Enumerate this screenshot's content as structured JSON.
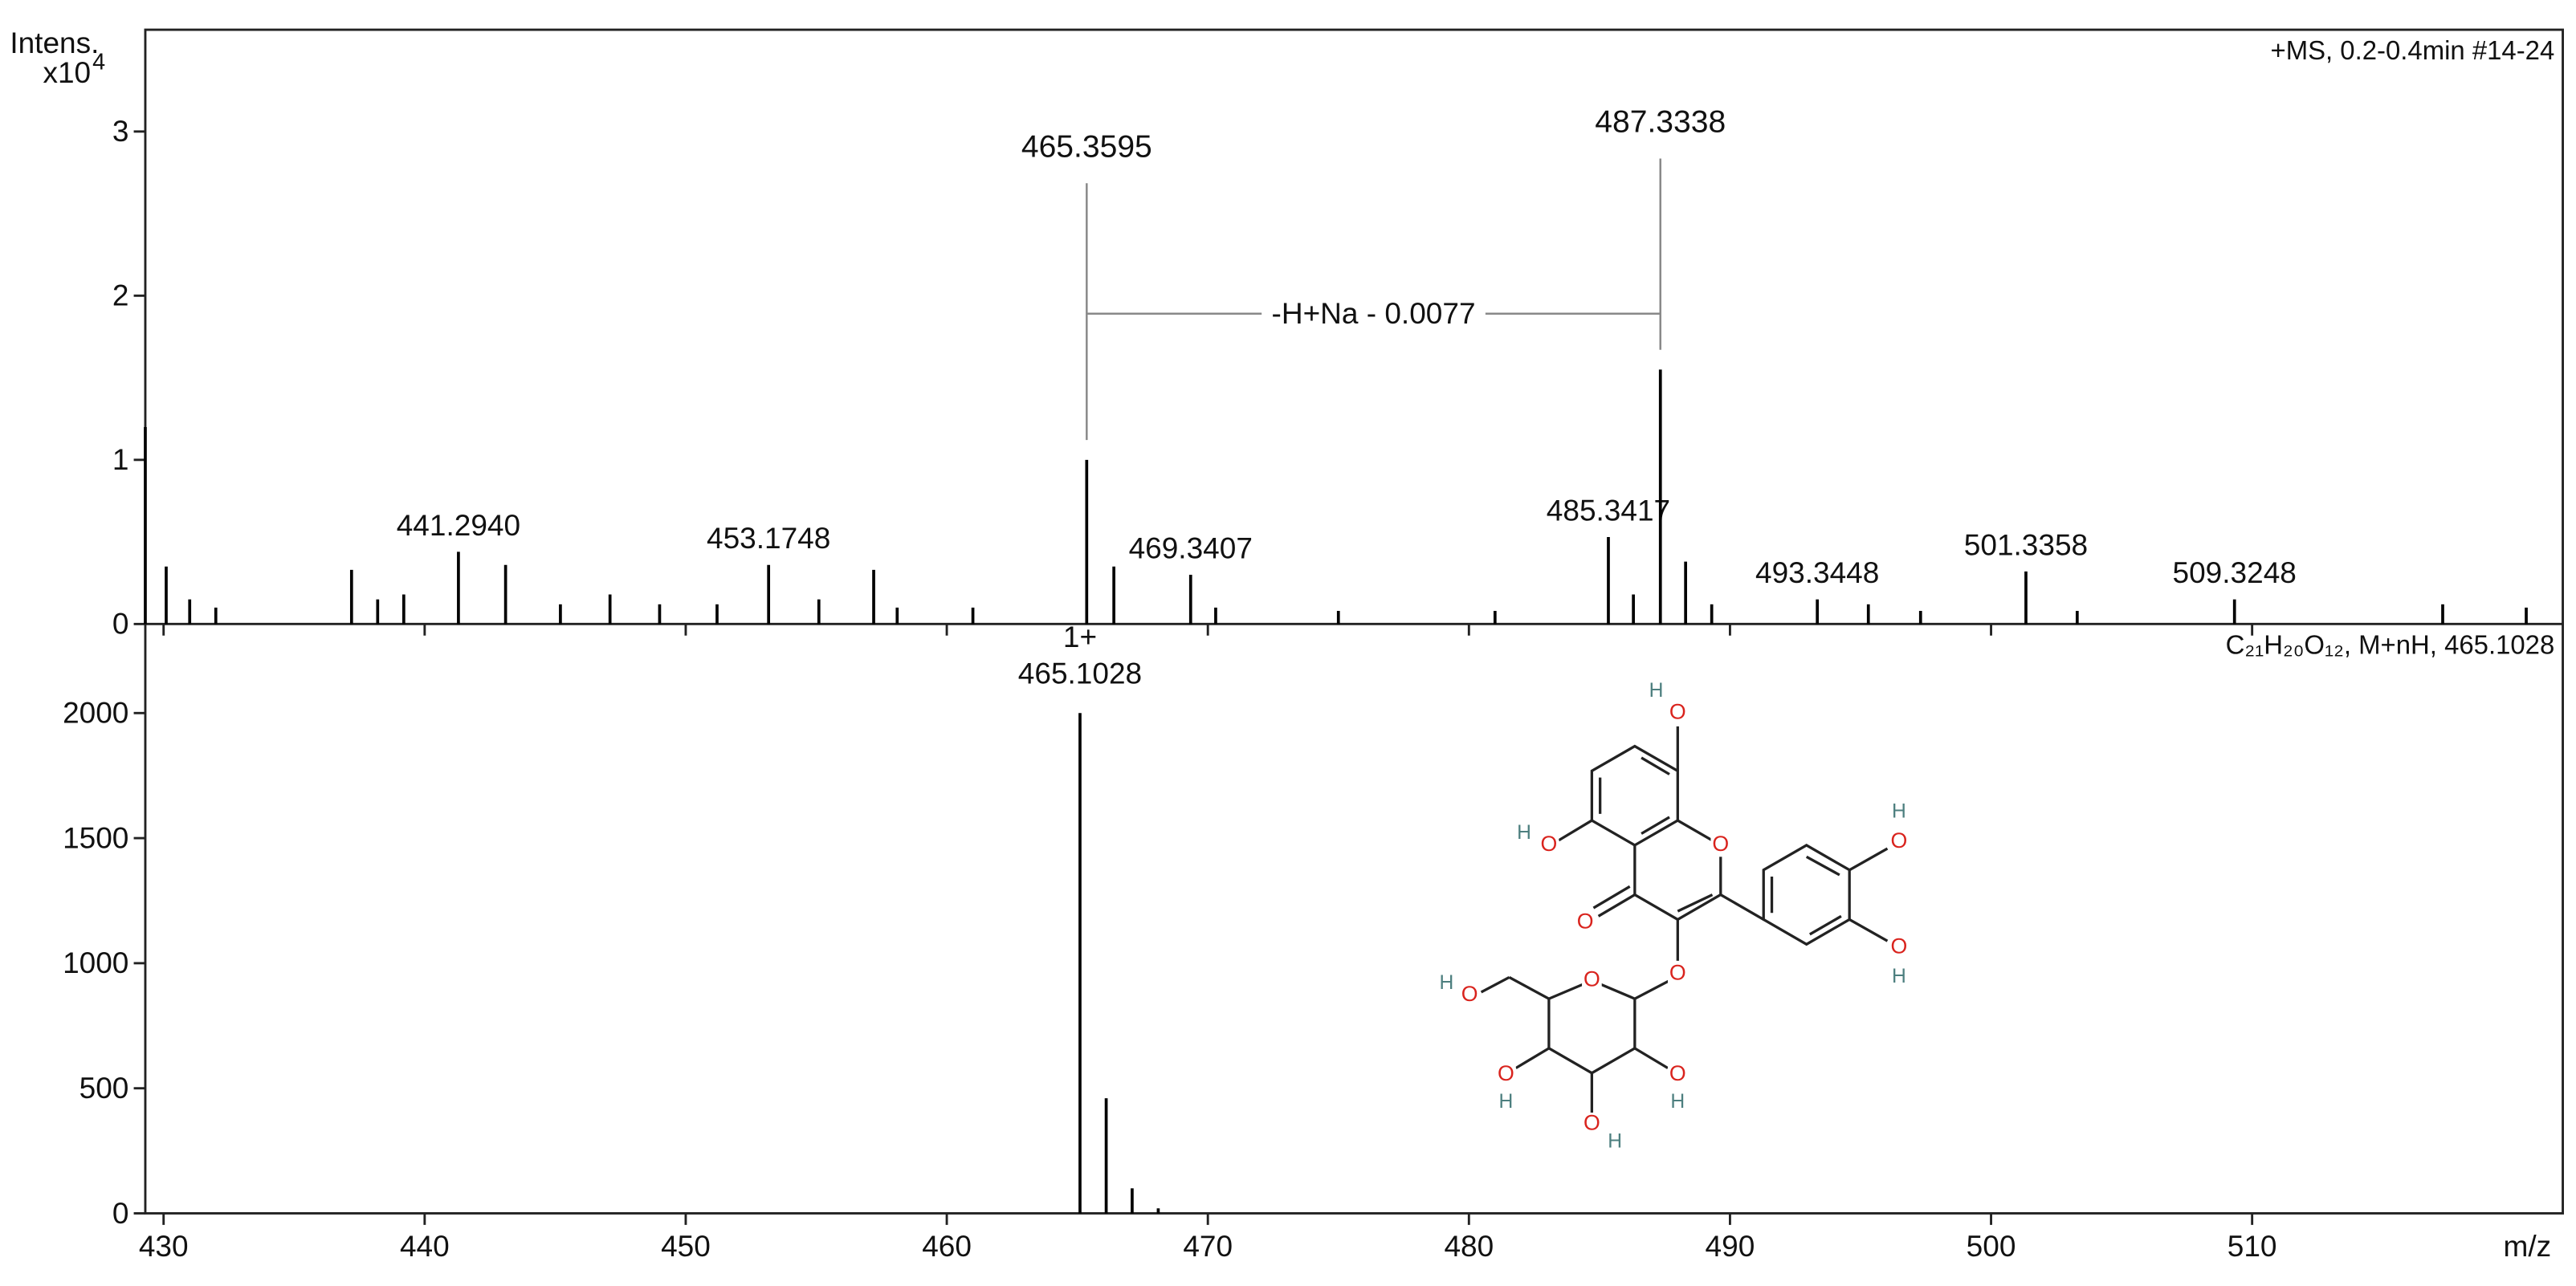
{
  "chart_data": [
    {
      "type": "stem",
      "y_label": "Intens.",
      "y_multiplier": "x10",
      "y_exponent": "4",
      "annotation": "+MS, 0.2-0.4min #14-24",
      "bracket_label": "-H+Na - 0.0077",
      "color": "#000000",
      "xlim": [
        429.3,
        521.9
      ],
      "ylim": [
        0,
        3.62
      ],
      "yticks": [
        0,
        1,
        2,
        3
      ],
      "x": [
        429.3,
        430.1,
        431.0,
        432.0,
        437.2,
        438.2,
        439.2,
        441.294,
        443.1,
        445.2,
        447.1,
        449.0,
        451.2,
        453.1748,
        455.1,
        457.2,
        458.1,
        461.0,
        465.3595,
        466.4,
        469.3407,
        470.3,
        475.0,
        481.0,
        485.3417,
        486.3,
        487.3338,
        488.3,
        489.3,
        493.3448,
        495.3,
        497.3,
        501.3358,
        503.3,
        509.3248,
        517.3,
        520.5
      ],
      "values": [
        1.2,
        0.35,
        0.15,
        0.1,
        0.33,
        0.15,
        0.18,
        0.44,
        0.36,
        0.12,
        0.18,
        0.12,
        0.12,
        0.36,
        0.15,
        0.33,
        0.1,
        0.1,
        1.0,
        0.35,
        0.3,
        0.1,
        0.08,
        0.08,
        0.53,
        0.18,
        1.55,
        0.38,
        0.12,
        0.15,
        0.12,
        0.08,
        0.32,
        0.08,
        0.15,
        0.12,
        0.1
      ],
      "x_labels": [
        null,
        null,
        null,
        null,
        null,
        null,
        null,
        "441.2940",
        null,
        null,
        null,
        null,
        null,
        "453.1748",
        null,
        null,
        null,
        null,
        "465.3595",
        null,
        "469.3407",
        null,
        null,
        null,
        "485.3417",
        null,
        "487.3338",
        null,
        null,
        "493.3448",
        null,
        null,
        "501.3358",
        null,
        "509.3248",
        null,
        null
      ]
    },
    {
      "type": "stem",
      "annotation": "C₂₁H₂₀O₁₂, M+nH, 465.1028",
      "charge_label": "1+",
      "color": "#000000",
      "xlim": [
        429.3,
        521.9
      ],
      "ylim": [
        0,
        2356
      ],
      "yticks": [
        0,
        500,
        1000,
        1500,
        2000
      ],
      "xticks": [
        430,
        440,
        450,
        460,
        470,
        480,
        490,
        500,
        510
      ],
      "x_label": "m/z",
      "x": [
        465.1028,
        466.106,
        467.1,
        468.1
      ],
      "values": [
        2000,
        460,
        100,
        20
      ],
      "x_labels": [
        "465.1028",
        null,
        null,
        null
      ]
    }
  ],
  "structure": {
    "atoms": [
      "O",
      "H",
      "O",
      "H",
      "O",
      "O",
      "O",
      "O",
      "H",
      "O",
      "H",
      "O",
      "O",
      "H",
      "O",
      "H",
      "O",
      "H",
      "O",
      "H"
    ]
  }
}
